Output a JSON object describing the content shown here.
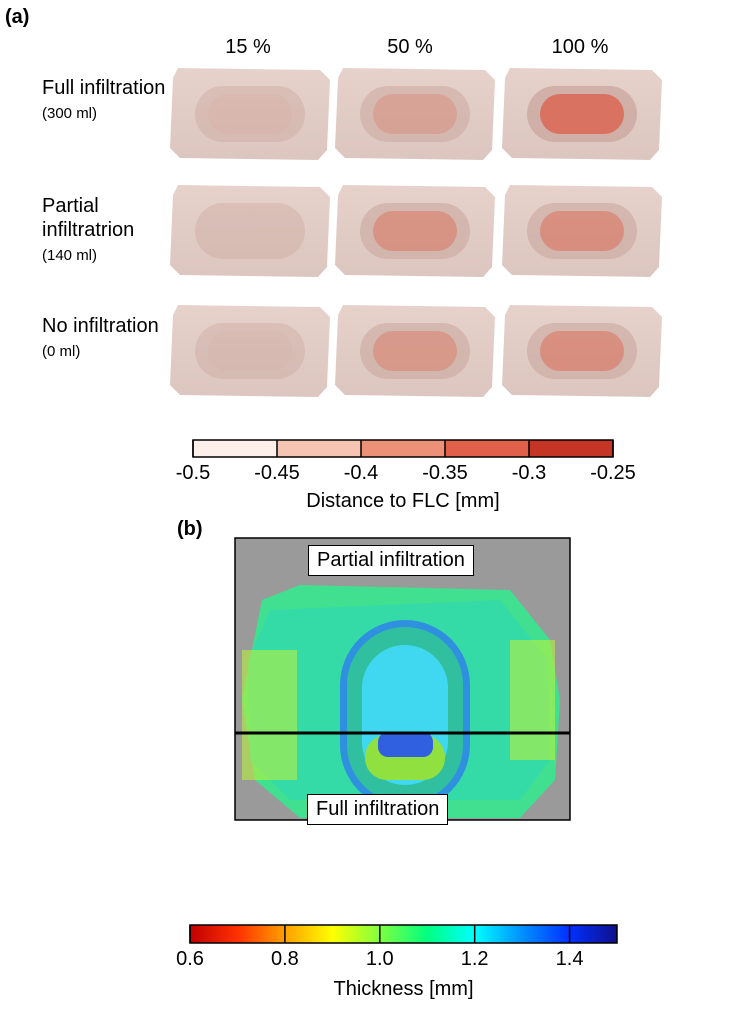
{
  "panel_a": {
    "label": "(a)",
    "columns": [
      "15 %",
      "50 %",
      "100 %"
    ],
    "rows": [
      {
        "label": "Full infiltration",
        "volume": "(300 ml)"
      },
      {
        "label": "Partial infiltratrion",
        "volume": "(140 ml)"
      },
      {
        "label": "No infiltration",
        "volume": "(0 ml)"
      }
    ],
    "colorbar": {
      "range": [
        -0.5,
        -0.25
      ],
      "ticks": [
        -0.5,
        -0.45,
        -0.4,
        -0.35,
        -0.3,
        -0.25
      ],
      "colors": [
        "#fdf0ea",
        "#f5c4b2",
        "#ec9077",
        "#e0604a",
        "#c53525"
      ],
      "label": "Distance to FLC [mm]"
    }
  },
  "panel_b": {
    "label": "(b)",
    "top_label": "Partial infiltration",
    "bottom_label": "Full infiltration",
    "colorbar": {
      "range": [
        0.6,
        1.5
      ],
      "ticks": [
        0.6,
        0.8,
        {
          "value": 1,
          "label": "1.0"
        },
        1.2,
        1.4
      ],
      "colors": [
        "#c00000",
        "#ff3000",
        "#ffa000",
        "#ffff00",
        "#80ff40",
        "#00ff80",
        "#00ffff",
        "#0090ff",
        "#0030ff",
        "#10108a"
      ],
      "label": "Thickness [mm]"
    }
  }
}
